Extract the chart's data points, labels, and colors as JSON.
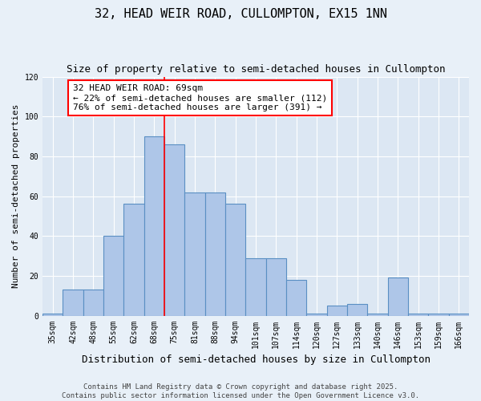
{
  "title": "32, HEAD WEIR ROAD, CULLOMPTON, EX15 1NN",
  "subtitle": "Size of property relative to semi-detached houses in Cullompton",
  "xlabel": "Distribution of semi-detached houses by size in Cullompton",
  "ylabel": "Number of semi-detached properties",
  "categories": [
    "35sqm",
    "42sqm",
    "48sqm",
    "55sqm",
    "62sqm",
    "68sqm",
    "75sqm",
    "81sqm",
    "88sqm",
    "94sqm",
    "101sqm",
    "107sqm",
    "114sqm",
    "120sqm",
    "127sqm",
    "133sqm",
    "140sqm",
    "146sqm",
    "153sqm",
    "159sqm",
    "166sqm"
  ],
  "values": [
    1,
    13,
    13,
    40,
    56,
    90,
    86,
    62,
    62,
    56,
    29,
    29,
    18,
    1,
    5,
    6,
    1,
    19,
    1,
    1,
    1
  ],
  "bar_color": "#aec6e8",
  "bar_edge_color": "#5a8fc3",
  "red_line_index": 5,
  "annotation_text_line1": "32 HEAD WEIR ROAD: 69sqm",
  "annotation_text_line2": "← 22% of semi-detached houses are smaller (112)",
  "annotation_text_line3": "76% of semi-detached houses are larger (391) →",
  "ylim": [
    0,
    120
  ],
  "yticks": [
    0,
    20,
    40,
    60,
    80,
    100,
    120
  ],
  "footer1": "Contains HM Land Registry data © Crown copyright and database right 2025.",
  "footer2": "Contains public sector information licensed under the Open Government Licence v3.0.",
  "background_color": "#e8f0f8",
  "plot_bg_color": "#dce7f3",
  "grid_color": "#ffffff",
  "title_fontsize": 11,
  "subtitle_fontsize": 9,
  "xlabel_fontsize": 9,
  "ylabel_fontsize": 8,
  "tick_fontsize": 7,
  "annotation_fontsize": 8,
  "footer_fontsize": 6.5
}
